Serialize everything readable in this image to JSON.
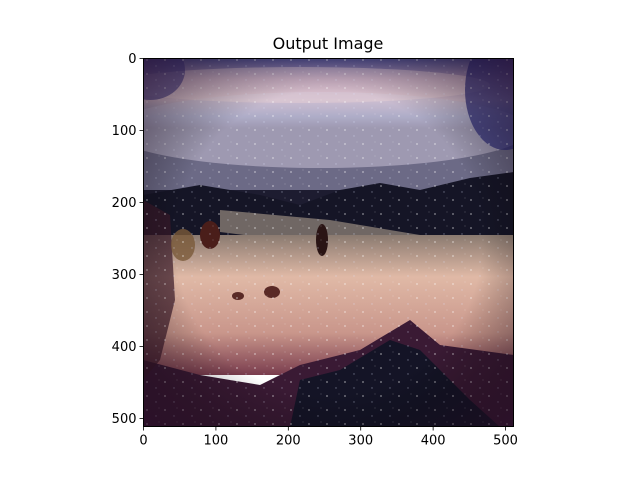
{
  "chart_data": {
    "type": "heatmap",
    "title": "Output Image",
    "xlabel": "",
    "ylabel": "",
    "xlim": [
      0,
      511
    ],
    "ylim": [
      511,
      0
    ],
    "x_ticks": [
      0,
      100,
      200,
      300,
      400,
      500
    ],
    "y_ticks": [
      0,
      100,
      200,
      300,
      400,
      500
    ],
    "grid": false,
    "image_description_regions": [
      {
        "name": "sky",
        "y_range": [
          0,
          180
        ],
        "dominant_colors": [
          "#6b5a86",
          "#a99bb2",
          "#cdb7c3",
          "#3e3d88"
        ]
      },
      {
        "name": "horizon-band",
        "y_range": [
          180,
          250
        ],
        "dominant_colors": [
          "#1b1c2e",
          "#6f6460",
          "#9b8b82"
        ]
      },
      {
        "name": "sand-field",
        "y_range": [
          250,
          380
        ],
        "dominant_colors": [
          "#cfa392",
          "#e2b9a4",
          "#8a3f32"
        ]
      },
      {
        "name": "foreground",
        "y_range": [
          380,
          511
        ],
        "dominant_colors": [
          "#5a2436",
          "#1e1d30",
          "#7a3c55"
        ]
      }
    ]
  }
}
